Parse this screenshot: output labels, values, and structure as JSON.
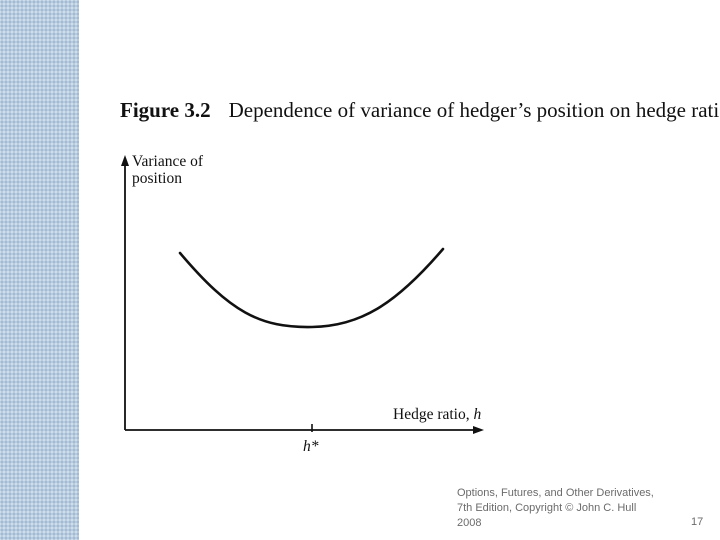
{
  "figure": {
    "number": "Figure 3.2",
    "caption": "Dependence of variance of hedger’s position on hedge ratio."
  },
  "diagram": {
    "y_axis_label_line1": "Variance of",
    "y_axis_label_line2": "position",
    "x_axis_label": "Hedge ratio,",
    "x_axis_var": "h",
    "optimum_tick_label": "h*"
  },
  "footer": {
    "line1": "Options, Futures, and Other Derivatives,",
    "line2": "7th Edition, Copyright © John C. Hull",
    "line3": "2008",
    "page_number": "17"
  },
  "colors": {
    "side_band": "#b8cce0",
    "ink": "#111111",
    "footer_text": "#6b6b6b"
  }
}
